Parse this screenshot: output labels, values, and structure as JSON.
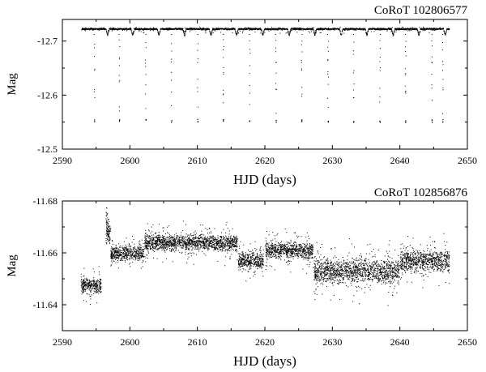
{
  "chart_data": [
    {
      "type": "scatter",
      "title": "CoRoT 102806577",
      "xlabel": "HJD (days)",
      "ylabel": "Mag",
      "xlim": [
        2590,
        2650
      ],
      "ylim": [
        -12.5,
        -12.74
      ],
      "y_axis_inverted": true,
      "xticks": [
        "2590",
        "2600",
        "2610",
        "2620",
        "2630",
        "2640",
        "2650"
      ],
      "yticks": [
        "-12.7",
        "-12.6",
        "-12.5"
      ],
      "grid": false,
      "series": [
        {
          "data_range_x": [
            2592.8,
            2647.3
          ],
          "baseline_mag": -12.723,
          "eclipse_times": [
            2594.7,
            2598.4,
            2602.3,
            2606.1,
            2610.0,
            2613.8,
            2617.7,
            2621.6,
            2625.4,
            2629.3,
            2633.1,
            2637.0,
            2640.8,
            2644.7,
            2646.3
          ],
          "eclipse_depth_mag": 0.17,
          "secondary_dip_mag": 0.012
        }
      ]
    },
    {
      "type": "scatter",
      "title": "CoRoT 102856876",
      "xlabel": "HJD (days)",
      "ylabel": "Mag",
      "xlim": [
        2590,
        2650
      ],
      "ylim": [
        -11.63,
        -11.68
      ],
      "y_axis_inverted": true,
      "xticks": [
        "2590",
        "2600",
        "2610",
        "2620",
        "2630",
        "2640",
        "2650"
      ],
      "yticks": [
        "-11.68",
        "-11.66",
        "-11.64"
      ],
      "grid": false,
      "series": [
        {
          "segments": [
            {
              "x": [
                2592.7,
                2595.7
              ],
              "mag": -11.6475,
              "scatter": 0.0028
            },
            {
              "x": [
                2596.4,
                2597.1
              ],
              "mag": -11.667,
              "scatter": 0.004
            },
            {
              "x": [
                2597.1,
                2602.0
              ],
              "mag": -11.66,
              "scatter": 0.0028
            },
            {
              "x": [
                2602.1,
                2615.9
              ],
              "mag": -11.664,
              "scatter": 0.003
            },
            {
              "x": [
                2616.0,
                2619.8
              ],
              "mag": -11.657,
              "scatter": 0.0032
            },
            {
              "x": [
                2620.0,
                2627.1
              ],
              "mag": -11.661,
              "scatter": 0.003
            },
            {
              "x": [
                2627.2,
                2639.9
              ],
              "mag": -11.653,
              "scatter": 0.0045
            },
            {
              "x": [
                2640.0,
                2647.3
              ],
              "mag": -11.657,
              "scatter": 0.004
            }
          ]
        }
      ]
    }
  ]
}
